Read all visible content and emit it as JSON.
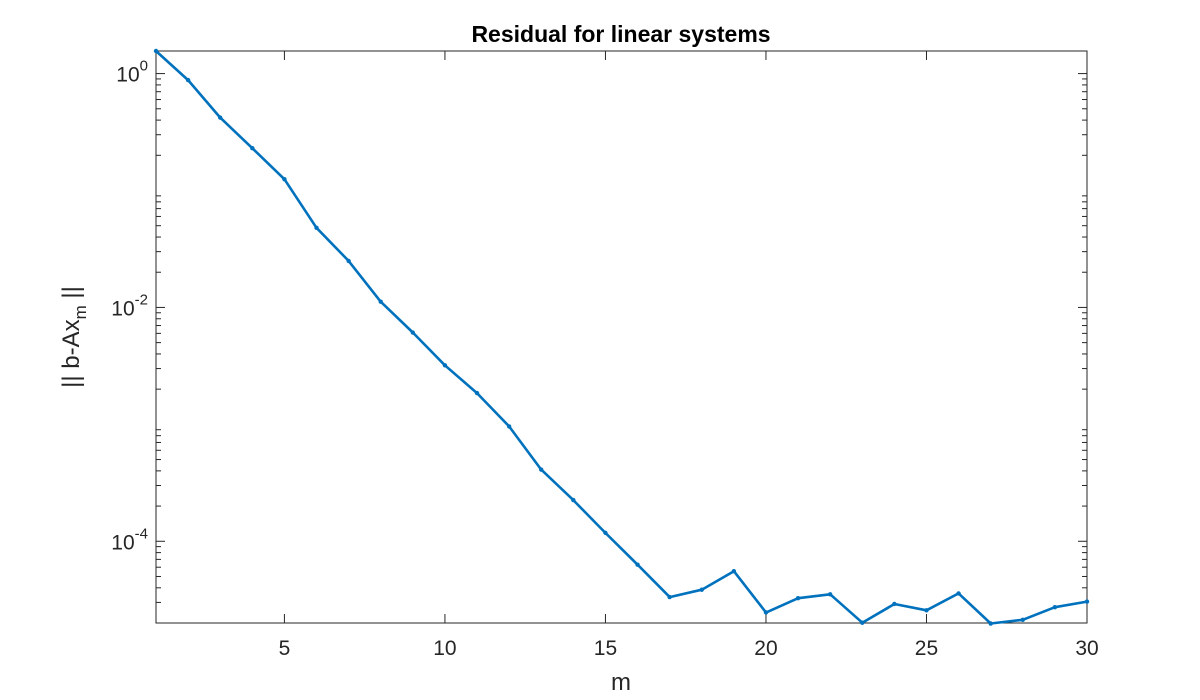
{
  "chart_data": {
    "type": "line",
    "title": "Residual for linear systems",
    "xlabel": "m",
    "ylabel": {
      "main": "|| b-Ax",
      "sub": "m",
      "suffix": " ||"
    },
    "x_ticks": [
      "5",
      "10",
      "15",
      "20",
      "25",
      "30"
    ],
    "y_ticks": [
      {
        "base": "10",
        "exp": "0"
      },
      {
        "base": "10",
        "exp": "-2"
      },
      {
        "base": "10",
        "exp": "-4"
      }
    ],
    "xlim": [
      1,
      30
    ],
    "ylim": [
      2e-05,
      1.56
    ],
    "yscale": "log",
    "grid": false,
    "line_color": "#0072BD",
    "series": [
      {
        "x": [
          1,
          2,
          3,
          4,
          5,
          6,
          7,
          8,
          9,
          10,
          11,
          12,
          13,
          14,
          15,
          16,
          17,
          18,
          19,
          20,
          21,
          22,
          23,
          24,
          25,
          26,
          27,
          28,
          29,
          30
        ],
        "values": [
          1.56,
          0.88,
          0.42,
          0.23,
          0.125,
          0.048,
          0.025,
          0.0112,
          0.0061,
          0.0032,
          0.00185,
          0.00096,
          0.00041,
          0.000225,
          0.000118,
          6.3e-05,
          3.33e-05,
          3.85e-05,
          5.55e-05,
          2.46e-05,
          3.26e-05,
          3.52e-05,
          2.01e-05,
          2.91e-05,
          2.57e-05,
          3.58e-05,
          1.98e-05,
          2.13e-05,
          2.73e-05,
          3.05e-05
        ]
      }
    ]
  }
}
